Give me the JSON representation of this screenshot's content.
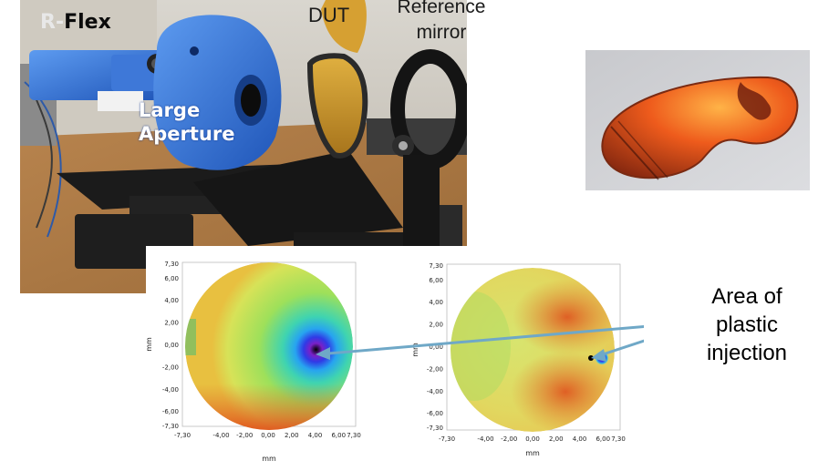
{
  "photo_labels": {
    "brand_prefix": "R-",
    "brand_name": "Flex",
    "aperture_line1": "Large",
    "aperture_line2": "Aperture",
    "dut": "DUT",
    "reference_line1": "Reference",
    "reference_line2": "mirror"
  },
  "annotation": {
    "line1": "Area of",
    "line2": "plastic",
    "line3": "injection"
  },
  "plots": [
    {
      "xlabel": "mm",
      "ylabel": "mm",
      "xticks": [
        "-7,30",
        "-4,00",
        "-2,00",
        "0,00",
        "2,00",
        "4,00",
        "6,00",
        "7,30"
      ],
      "yticks": [
        "7,30",
        "6,00",
        "4,00",
        "2,00",
        "0,00",
        "-2,00",
        "-4,00",
        "-6,00",
        "-7,30"
      ]
    },
    {
      "xlabel": "mm",
      "ylabel": "mm",
      "xticks": [
        "-7,30",
        "-4,00",
        "-2,00",
        "0,00",
        "2,00",
        "4,00",
        "6,00",
        "7,30"
      ],
      "yticks": [
        "7,30",
        "6,00",
        "4,00",
        "2,00",
        "0,00",
        "-2,00",
        "-4,00",
        "-6,00",
        "-7,30"
      ]
    }
  ],
  "colors": {
    "arrow": "#6fa8c7",
    "device_blue": "#2f6fd6",
    "lens_orange": "#e8561a"
  }
}
